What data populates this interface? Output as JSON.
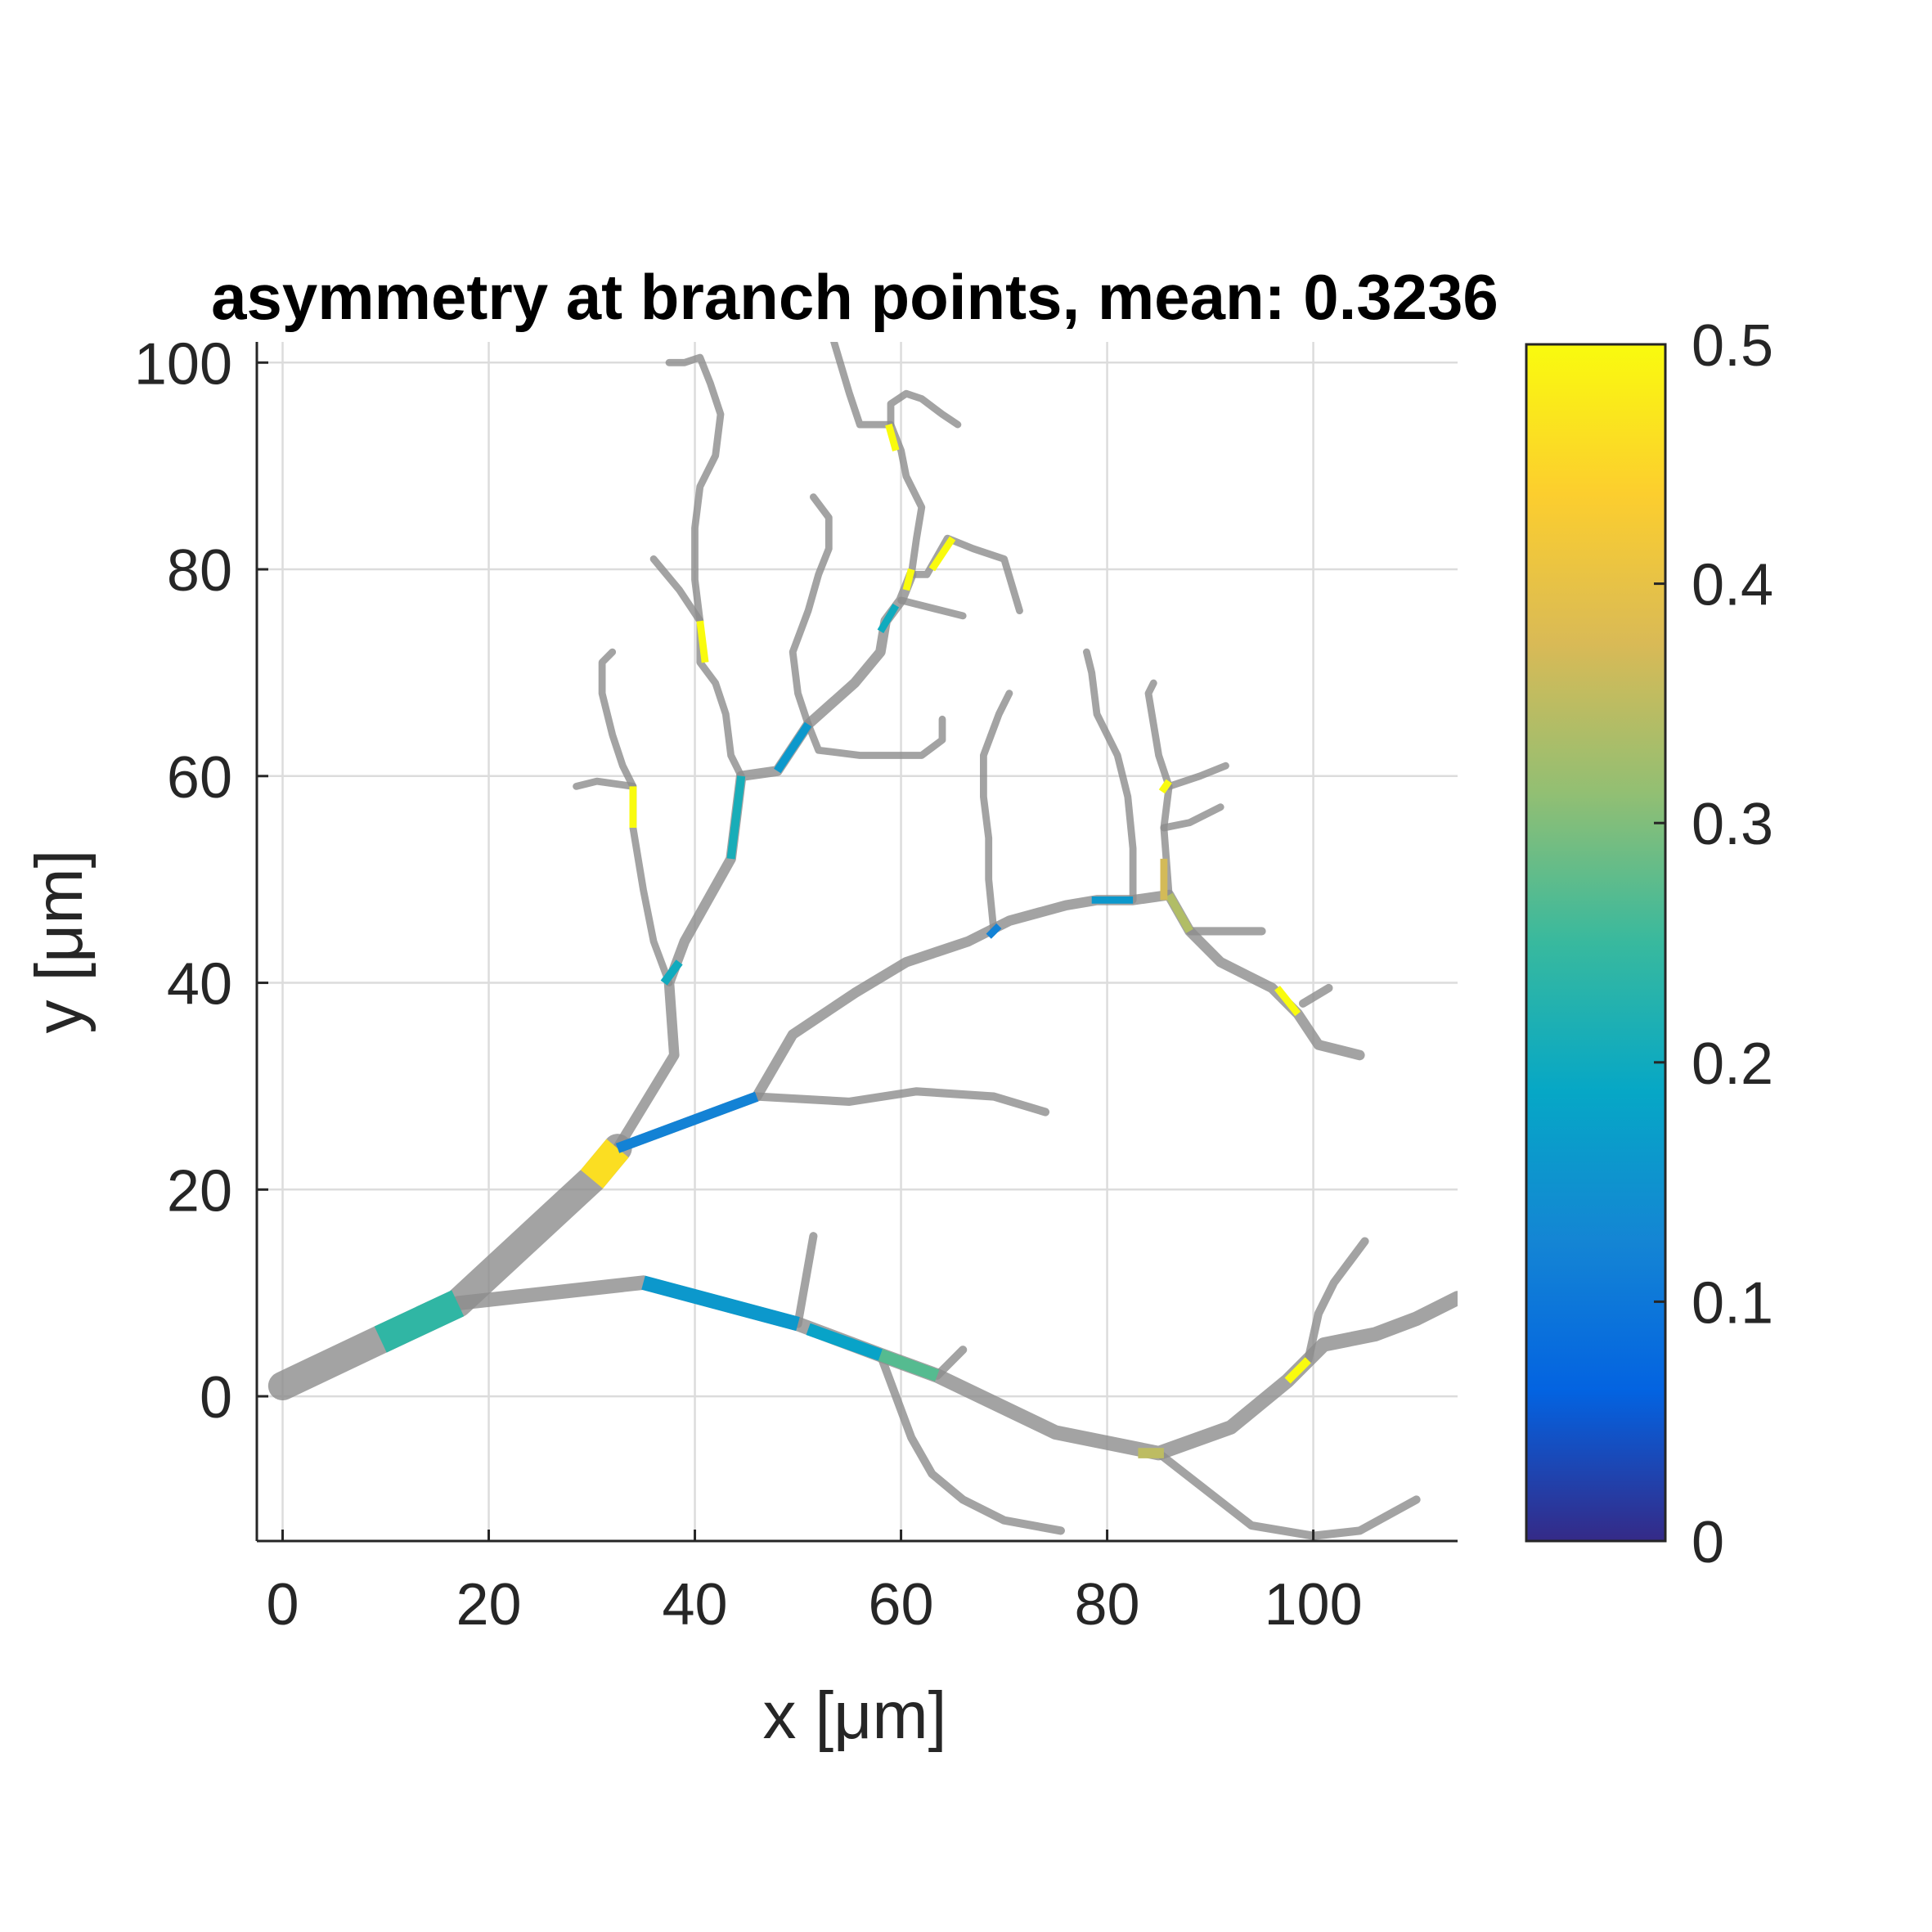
{
  "chart_data": {
    "type": "tree-plot",
    "title": "asymmetry at branch points, mean: 0.3236",
    "xlabel": "x [μm]",
    "ylabel": "y [μm]",
    "xlim": [
      -2.5,
      114
    ],
    "ylim": [
      -14,
      102
    ],
    "xticks": [
      "0",
      "20",
      "40",
      "60",
      "80",
      "100"
    ],
    "yticks": [
      "0",
      "20",
      "40",
      "60",
      "80",
      "100"
    ],
    "xtick_values": [
      0,
      20,
      40,
      60,
      80,
      100
    ],
    "ytick_values": [
      0,
      20,
      40,
      60,
      80,
      100
    ],
    "grid": true,
    "colorbar": {
      "range": [
        0,
        0.5
      ],
      "ticks": [
        "0",
        "0.1",
        "0.2",
        "0.3",
        "0.4",
        "0.5"
      ],
      "tick_values": [
        0,
        0.1,
        0.2,
        0.3,
        0.4,
        0.5
      ],
      "colormap": "parula",
      "stops": [
        "#352a87",
        "#0363e1",
        "#1485d4",
        "#06a7c6",
        "#38b99e",
        "#92bf73",
        "#d9ba56",
        "#fcce2e",
        "#f9fb0e"
      ]
    },
    "default_color": "#8c8c8c",
    "segments": [
      {
        "points": [
          [
            0,
            1
          ],
          [
            9.5,
            5.5
          ],
          [
            17,
            9
          ],
          [
            30,
            21
          ],
          [
            32.5,
            24
          ]
        ],
        "width": 2.8
      },
      {
        "points": [
          [
            17,
            9
          ],
          [
            35,
            11
          ],
          [
            50,
            7
          ],
          [
            58,
            4
          ],
          [
            63.5,
            2
          ],
          [
            75,
            -3.5
          ],
          [
            85,
            -5.5
          ],
          [
            92,
            -3
          ],
          [
            97.5,
            1.5
          ],
          [
            99.5,
            3.5
          ],
          [
            101,
            5
          ],
          [
            106,
            6
          ],
          [
            110,
            7.5
          ],
          [
            114,
            9.5
          ]
        ],
        "width": 1.4
      },
      {
        "points": [
          [
            32.5,
            24
          ],
          [
            38,
            33
          ],
          [
            37.5,
            40
          ],
          [
            39,
            44
          ],
          [
            43.5,
            52
          ],
          [
            44.5,
            60
          ],
          [
            48,
            60.5
          ],
          [
            51,
            65
          ],
          [
            55.5,
            69
          ],
          [
            58,
            72
          ],
          [
            58.5,
            75
          ],
          [
            60,
            77
          ],
          [
            61,
            79.5
          ]
        ],
        "width": 1.0
      },
      {
        "points": [
          [
            32.5,
            24
          ],
          [
            46,
            29
          ],
          [
            49.5,
            35
          ],
          [
            55.5,
            39
          ],
          [
            60.5,
            42
          ],
          [
            63.5,
            43
          ],
          [
            66.5,
            44
          ],
          [
            70.5,
            46
          ],
          [
            76,
            47.5
          ],
          [
            79,
            48
          ],
          [
            82.5,
            48
          ],
          [
            86,
            48.5
          ],
          [
            88,
            45
          ],
          [
            91,
            42
          ],
          [
            96,
            39.5
          ],
          [
            98.5,
            37
          ],
          [
            100.5,
            34
          ],
          [
            104.5,
            33
          ]
        ],
        "width": 1.0
      },
      {
        "points": [
          [
            46,
            29
          ],
          [
            55,
            28.5
          ],
          [
            61.5,
            29.5
          ],
          [
            69,
            29
          ],
          [
            74,
            27.5
          ]
        ],
        "width": 0.8
      },
      {
        "points": [
          [
            63.5,
            2
          ],
          [
            66,
            4.5
          ]
        ],
        "width": 0.8
      },
      {
        "points": [
          [
            58,
            4
          ],
          [
            61,
            -4
          ],
          [
            63,
            -7.5
          ],
          [
            66,
            -10
          ],
          [
            70,
            -12
          ],
          [
            75.5,
            -13
          ]
        ],
        "width": 0.8
      },
      {
        "points": [
          [
            50,
            7
          ],
          [
            51.5,
            15.5
          ]
        ],
        "width": 0.8
      },
      {
        "points": [
          [
            85,
            -5.5
          ],
          [
            94,
            -12.5
          ],
          [
            100,
            -13.5
          ],
          [
            104.5,
            -13
          ],
          [
            110,
            -10
          ]
        ],
        "width": 0.8
      },
      {
        "points": [
          [
            99.5,
            3.5
          ],
          [
            100.5,
            8
          ],
          [
            102,
            11
          ],
          [
            103.5,
            13
          ],
          [
            105,
            15
          ]
        ],
        "width": 0.8
      },
      {
        "points": [
          [
            99,
            38
          ],
          [
            101.5,
            39.5
          ]
        ],
        "width": 0.8
      },
      {
        "points": [
          [
            88,
            45
          ],
          [
            91,
            45
          ],
          [
            95,
            45
          ]
        ],
        "width": 0.8
      },
      {
        "points": [
          [
            86,
            48.5
          ],
          [
            85.5,
            55
          ],
          [
            86,
            59
          ],
          [
            85,
            62
          ],
          [
            84.5,
            65
          ],
          [
            84,
            68
          ],
          [
            84.5,
            69
          ]
        ],
        "width": 0.7
      },
      {
        "points": [
          [
            85.5,
            55
          ],
          [
            88,
            55.5
          ],
          [
            91,
            57
          ]
        ],
        "width": 0.7
      },
      {
        "points": [
          [
            86,
            59
          ],
          [
            89,
            60
          ],
          [
            91.5,
            61
          ]
        ],
        "width": 0.7
      },
      {
        "points": [
          [
            82.5,
            48
          ],
          [
            82.5,
            53
          ],
          [
            82,
            58
          ],
          [
            81,
            62
          ],
          [
            79,
            66
          ],
          [
            78.5,
            70
          ],
          [
            78,
            72
          ]
        ],
        "width": 0.7
      },
      {
        "points": [
          [
            69,
            45
          ],
          [
            68.5,
            50
          ],
          [
            68.5,
            54
          ],
          [
            68,
            58
          ],
          [
            68,
            62
          ],
          [
            69.5,
            66
          ],
          [
            70.5,
            68
          ]
        ],
        "width": 0.7
      },
      {
        "points": [
          [
            37.5,
            40
          ],
          [
            36,
            44
          ],
          [
            35,
            49
          ],
          [
            34,
            55
          ],
          [
            34,
            59
          ],
          [
            33,
            61
          ],
          [
            32,
            64
          ],
          [
            31,
            68
          ],
          [
            31,
            71
          ],
          [
            32,
            72
          ]
        ],
        "width": 0.7
      },
      {
        "points": [
          [
            34,
            59
          ],
          [
            30.5,
            59.5
          ],
          [
            28.5,
            59
          ]
        ],
        "width": 0.7
      },
      {
        "points": [
          [
            44.5,
            60
          ],
          [
            43.5,
            62
          ],
          [
            43,
            66
          ],
          [
            42,
            69
          ],
          [
            40.5,
            71
          ],
          [
            40.5,
            75
          ],
          [
            40,
            79
          ],
          [
            40,
            84
          ],
          [
            40.5,
            88
          ],
          [
            42,
            91
          ],
          [
            42.5,
            95
          ],
          [
            41.5,
            98
          ],
          [
            40.5,
            100.5
          ],
          [
            39,
            100
          ],
          [
            37.5,
            100
          ]
        ],
        "width": 0.7
      },
      {
        "points": [
          [
            40.5,
            75
          ],
          [
            38.5,
            78
          ],
          [
            36,
            81
          ]
        ],
        "width": 0.7
      },
      {
        "points": [
          [
            51,
            65
          ],
          [
            50,
            68
          ],
          [
            49.5,
            72
          ],
          [
            51,
            76
          ],
          [
            52,
            79.5
          ],
          [
            53,
            82
          ],
          [
            53,
            85
          ],
          [
            51.5,
            87
          ]
        ],
        "width": 0.7
      },
      {
        "points": [
          [
            51,
            65
          ],
          [
            52,
            62.5
          ],
          [
            56,
            62
          ],
          [
            59,
            62
          ],
          [
            62,
            62
          ],
          [
            64,
            63.5
          ],
          [
            64,
            65.5
          ]
        ],
        "width": 0.7
      },
      {
        "points": [
          [
            60,
            77
          ],
          [
            66,
            75.5
          ]
        ],
        "width": 0.7
      },
      {
        "points": [
          [
            61,
            79.5
          ],
          [
            61.5,
            83
          ],
          [
            62,
            86
          ],
          [
            60.5,
            89
          ],
          [
            60,
            91.5
          ],
          [
            59,
            94
          ],
          [
            56,
            94
          ],
          [
            55,
            97
          ],
          [
            53.5,
            102
          ]
        ],
        "width": 0.7
      },
      {
        "points": [
          [
            59,
            94
          ],
          [
            59,
            96
          ],
          [
            60.5,
            97
          ],
          [
            62,
            96.5
          ],
          [
            64,
            95
          ],
          [
            65.5,
            94
          ]
        ],
        "width": 0.7
      },
      {
        "points": [
          [
            61,
            79.5
          ],
          [
            62.5,
            79.5
          ],
          [
            64.5,
            83
          ],
          [
            67,
            82
          ],
          [
            70,
            81
          ],
          [
            71.5,
            76
          ]
        ],
        "width": 0.7
      }
    ],
    "branch_points": [
      {
        "points": [
          [
            9.5,
            5.5
          ],
          [
            17,
            9
          ]
        ],
        "width": 2.8,
        "value": 0.24
      },
      {
        "points": [
          [
            30,
            21
          ],
          [
            32.5,
            24
          ]
        ],
        "width": 2.8,
        "value": 0.46
      },
      {
        "points": [
          [
            32.5,
            24
          ],
          [
            46,
            29
          ]
        ],
        "width": 1.0,
        "value": 0.12
      },
      {
        "points": [
          [
            35,
            11
          ],
          [
            50,
            7
          ]
        ],
        "width": 1.4,
        "value": 0.16
      },
      {
        "points": [
          [
            51,
            6.5
          ],
          [
            58,
            4
          ]
        ],
        "width": 1.2,
        "value": 0.18
      },
      {
        "points": [
          [
            58,
            4
          ],
          [
            63.5,
            2
          ]
        ],
        "width": 1.2,
        "value": 0.27
      },
      {
        "points": [
          [
            83,
            -5.5
          ],
          [
            85.5,
            -5.5
          ]
        ],
        "width": 1.0,
        "value": 0.35
      },
      {
        "points": [
          [
            97.5,
            1.5
          ],
          [
            99.5,
            3.5
          ]
        ],
        "width": 0.8,
        "value": 0.5
      },
      {
        "points": [
          [
            37,
            40
          ],
          [
            38.5,
            42
          ]
        ],
        "width": 0.8,
        "value": 0.2
      },
      {
        "points": [
          [
            43.5,
            52
          ],
          [
            44.5,
            60
          ]
        ],
        "width": 0.8,
        "value": 0.21
      },
      {
        "points": [
          [
            48,
            60.5
          ],
          [
            51,
            65
          ]
        ],
        "width": 0.8,
        "value": 0.16
      },
      {
        "points": [
          [
            58,
            74
          ],
          [
            59.5,
            76.5
          ]
        ],
        "width": 0.7,
        "value": 0.2
      },
      {
        "points": [
          [
            60.5,
            78
          ],
          [
            61,
            80
          ]
        ],
        "width": 0.7,
        "value": 0.5
      },
      {
        "points": [
          [
            63,
            80
          ],
          [
            65,
            83
          ]
        ],
        "width": 0.7,
        "value": 0.5
      },
      {
        "points": [
          [
            41,
            71
          ],
          [
            40.5,
            75
          ]
        ],
        "width": 0.7,
        "value": 0.5
      },
      {
        "points": [
          [
            34,
            55
          ],
          [
            34,
            59
          ]
        ],
        "width": 0.7,
        "value": 0.5
      },
      {
        "points": [
          [
            59.5,
            91.5
          ],
          [
            58.8,
            94
          ]
        ],
        "width": 0.7,
        "value": 0.5
      },
      {
        "points": [
          [
            68.5,
            44.5
          ],
          [
            69.5,
            45.5
          ]
        ],
        "width": 0.7,
        "value": 0.12
      },
      {
        "points": [
          [
            78.5,
            48
          ],
          [
            82.5,
            48
          ]
        ],
        "width": 0.7,
        "value": 0.16
      },
      {
        "points": [
          [
            86,
            48.5
          ],
          [
            88,
            45
          ]
        ],
        "width": 0.8,
        "value": 0.34
      },
      {
        "points": [
          [
            85.5,
            48
          ],
          [
            85.5,
            52
          ]
        ],
        "width": 0.7,
        "value": 0.37
      },
      {
        "points": [
          [
            85.3,
            58.5
          ],
          [
            86,
            59.5
          ]
        ],
        "width": 0.7,
        "value": 0.5
      },
      {
        "points": [
          [
            96.5,
            39.5
          ],
          [
            98.5,
            37
          ]
        ],
        "width": 0.7,
        "value": 0.5
      }
    ]
  }
}
